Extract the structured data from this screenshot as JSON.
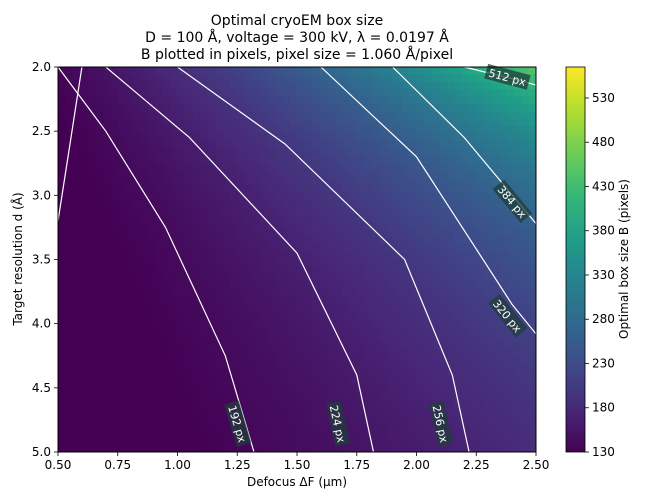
{
  "chart_data": {
    "type": "heatmap",
    "title_lines": [
      "Optimal cryoEM box size",
      "D = 100 Å, voltage = 300 kV, λ = 0.0197 Å",
      "B plotted in pixels, pixel size = 1.060 Å/pixel"
    ],
    "xlabel": "Defocus ΔF (μm)",
    "ylabel": "Target resolution d (Å)",
    "colorbar_label": "Optimal box size B (pixels)",
    "colormap": "viridis",
    "xlim": [
      0.5,
      2.5
    ],
    "ylim": [
      2.0,
      5.0
    ],
    "y_inverted": true,
    "x_ticks": [
      0.5,
      0.75,
      1.0,
      1.25,
      1.5,
      1.75,
      2.0,
      2.25,
      2.5
    ],
    "x_tick_labels": [
      "0.50",
      "0.75",
      "1.00",
      "1.25",
      "1.50",
      "1.75",
      "2.00",
      "2.25",
      "2.50"
    ],
    "y_ticks": [
      2.0,
      2.5,
      3.0,
      3.5,
      4.0,
      4.5,
      5.0
    ],
    "y_tick_labels": [
      "2.0",
      "2.5",
      "3.0",
      "3.5",
      "4.0",
      "4.5",
      "5.0"
    ],
    "colorbar_range": [
      130,
      565
    ],
    "colorbar_ticks": [
      130,
      180,
      230,
      280,
      330,
      380,
      430,
      480,
      530
    ],
    "colorbar_tick_labels": [
      "130",
      "180",
      "230",
      "280",
      "330",
      "380",
      "430",
      "480",
      "530"
    ],
    "contour_color": "#ffffff",
    "contours": [
      {
        "level": 160,
        "label": "",
        "points": [
          [
            0.5,
            3.2
          ],
          [
            0.55,
            2.6
          ],
          [
            0.6,
            2.0
          ]
        ]
      },
      {
        "level": 192,
        "label": "192 px",
        "points": [
          [
            0.5,
            2.0
          ],
          [
            0.7,
            2.5
          ],
          [
            0.95,
            3.25
          ],
          [
            1.2,
            4.25
          ],
          [
            1.32,
            5.0
          ]
        ],
        "label_at": [
          1.25,
          4.78
        ]
      },
      {
        "level": 224,
        "label": "224 px",
        "points": [
          [
            0.7,
            2.0
          ],
          [
            1.05,
            2.55
          ],
          [
            1.5,
            3.45
          ],
          [
            1.75,
            4.4
          ],
          [
            1.82,
            5.0
          ]
        ],
        "label_at": [
          1.67,
          4.78
        ]
      },
      {
        "level": 256,
        "label": "256 px",
        "points": [
          [
            1.0,
            2.0
          ],
          [
            1.45,
            2.6
          ],
          [
            1.95,
            3.5
          ],
          [
            2.15,
            4.4
          ],
          [
            2.22,
            5.0
          ]
        ],
        "label_at": [
          2.1,
          4.78
        ]
      },
      {
        "level": 320,
        "label": "320 px",
        "points": [
          [
            1.6,
            2.0
          ],
          [
            2.0,
            2.7
          ],
          [
            2.4,
            3.85
          ],
          [
            2.5,
            4.08
          ]
        ],
        "label_at": [
          2.38,
          3.94
        ]
      },
      {
        "level": 384,
        "label": "384 px",
        "points": [
          [
            1.9,
            2.0
          ],
          [
            2.2,
            2.55
          ],
          [
            2.5,
            3.22
          ]
        ],
        "label_at": [
          2.4,
          3.05
        ]
      },
      {
        "level": 512,
        "label": "512 px",
        "points": [
          [
            2.2,
            2.0
          ],
          [
            2.42,
            2.1
          ],
          [
            2.5,
            2.14
          ]
        ],
        "label_at": [
          2.38,
          2.08
        ]
      }
    ]
  }
}
